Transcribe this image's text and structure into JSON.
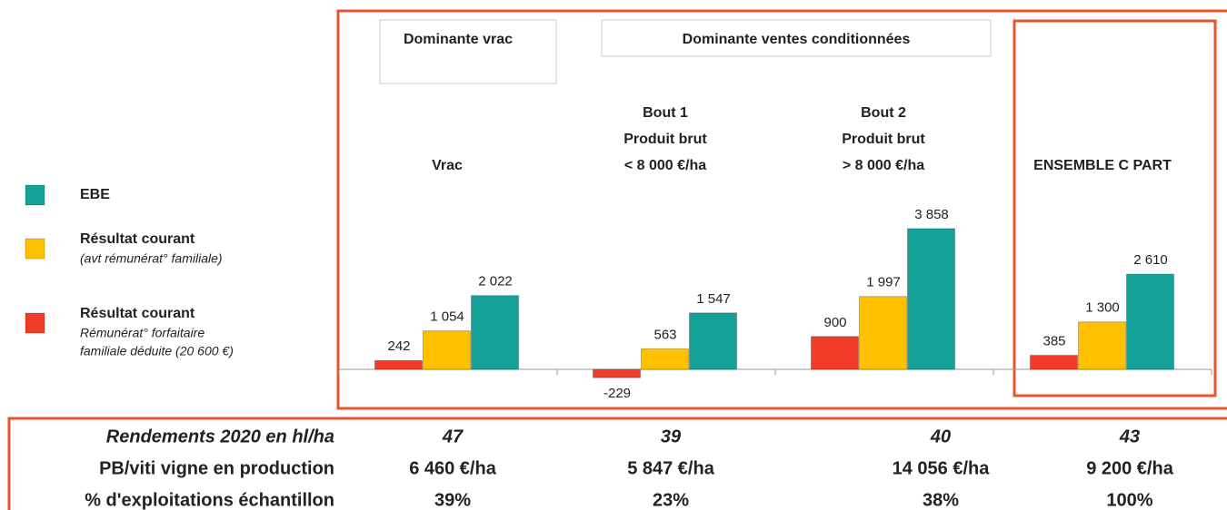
{
  "chart_data": {
    "type": "bar",
    "headers": [
      "Dominante vrac",
      "Dominante ventes conditionnées"
    ],
    "categories": [
      [
        "Vrac"
      ],
      [
        "Bout 1",
        "Produit brut",
        "< 8 000 €/ha"
      ],
      [
        "Bout 2",
        "Produit brut",
        "> 8 000 €/ha"
      ],
      [
        "ENSEMBLE C PART"
      ]
    ],
    "series": [
      {
        "name": "Résultat courant",
        "note": [
          "Rémunérat° forfaitaire",
          "familiale déduite (20 600 €)"
        ],
        "color": "#f03c28",
        "values": [
          242,
          -229,
          900,
          385
        ],
        "value_labels": [
          "242",
          "-229",
          "900",
          "385"
        ]
      },
      {
        "name": "Résultat courant",
        "note": [
          "(avt rémunérat° familiale)"
        ],
        "color": "#ffc000",
        "values": [
          1054,
          563,
          1997,
          1300
        ],
        "value_labels": [
          "1 054",
          "563",
          "1 997",
          "1 300"
        ]
      },
      {
        "name": "EBE",
        "color": "#16a09a",
        "values": [
          2022,
          1547,
          3858,
          2610
        ],
        "value_labels": [
          "2 022",
          "1 547",
          "3 858",
          "2 610"
        ]
      }
    ],
    "table": [
      {
        "label": "Rendements 2020 en hl/ha",
        "values": [
          "47",
          "39",
          "40",
          "43"
        ]
      },
      {
        "label": "PB/viti vigne en production",
        "values": [
          "6 460 €/ha",
          "5 847 €/ha",
          "14 056 €/ha",
          "9 200 €/ha"
        ]
      },
      {
        "label": "% d'exploitations échantillon",
        "values": [
          "39%",
          "23%",
          "38%",
          "100%"
        ]
      }
    ]
  }
}
